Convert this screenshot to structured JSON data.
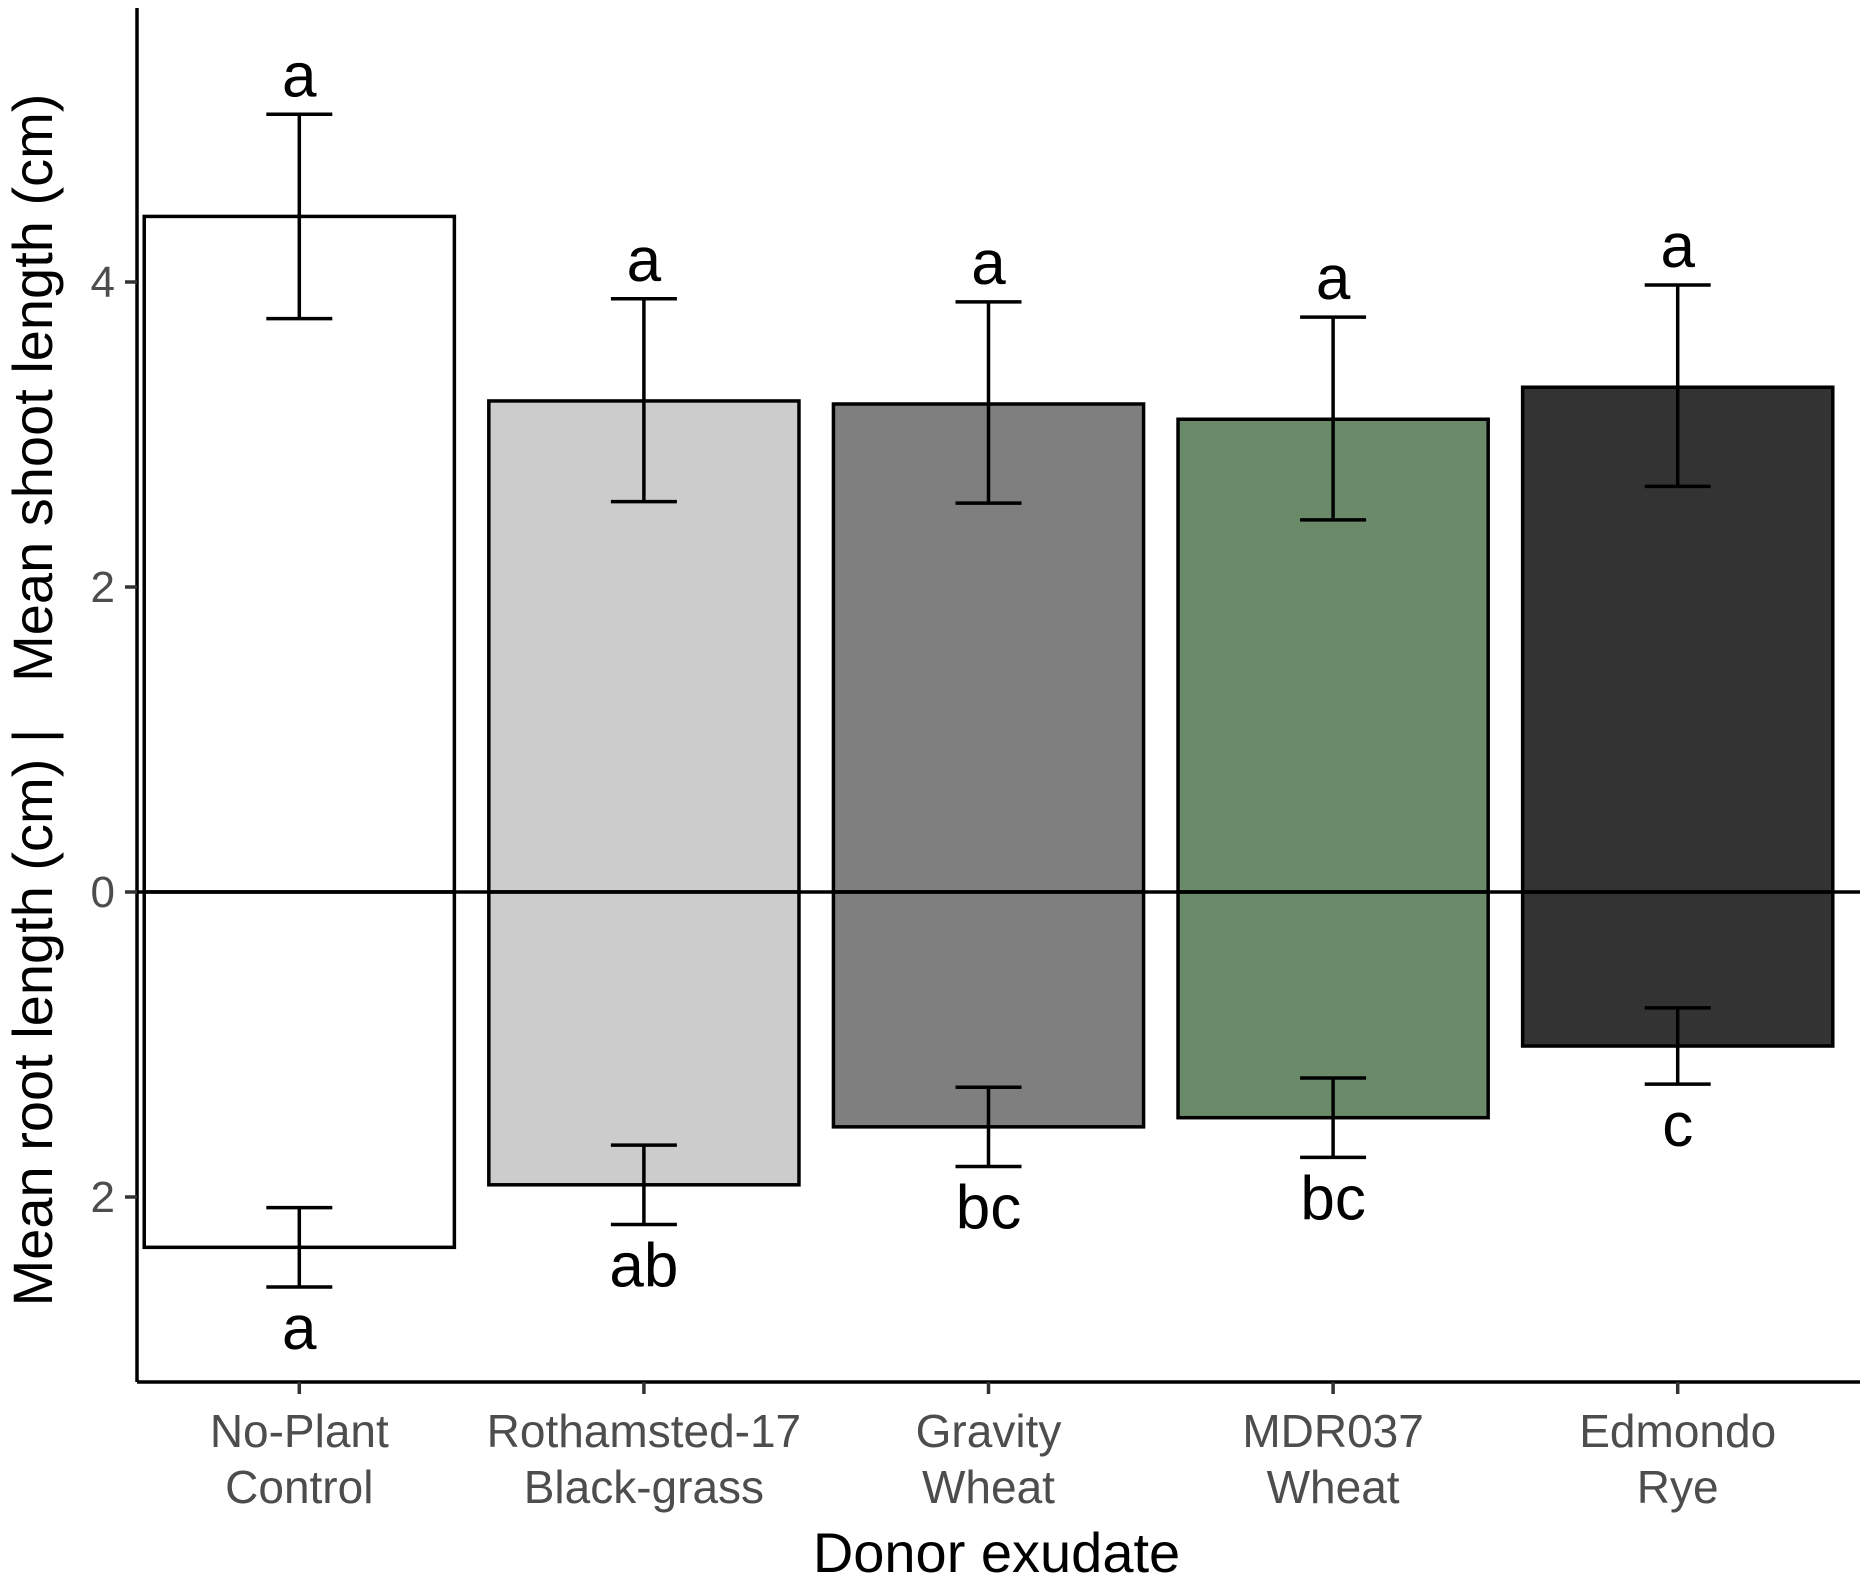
{
  "chart_data": {
    "type": "bar",
    "title": "",
    "xlabel": "Donor exudate",
    "ylabel": "Mean root length (cm) |   Mean shoot length (cm)",
    "ylim": [
      -3.2,
      5.8
    ],
    "yticks": [
      {
        "value": 4,
        "label": "4"
      },
      {
        "value": 2,
        "label": "2"
      },
      {
        "value": 0,
        "label": "0"
      },
      {
        "value": -2,
        "label": "2"
      }
    ],
    "categories": [
      {
        "line1": "No-Plant",
        "line2": "Control"
      },
      {
        "line1": "Rothamsted-17",
        "line2": "Black-grass"
      },
      {
        "line1": "Gravity",
        "line2": "Wheat"
      },
      {
        "line1": "MDR037",
        "line2": "Wheat"
      },
      {
        "line1": "Edmondo",
        "line2": "Rye"
      }
    ],
    "colors": [
      "#ffffff",
      "#cccccc",
      "#7f7f7f",
      "#6a8a6a",
      "#333333"
    ],
    "series": [
      {
        "name": "Mean shoot length (cm)",
        "values": [
          4.43,
          3.22,
          3.2,
          3.1,
          3.31
        ],
        "err_low": [
          3.76,
          2.56,
          2.55,
          2.44,
          2.66
        ],
        "err_high": [
          5.1,
          3.89,
          3.87,
          3.77,
          3.98
        ],
        "letters": [
          "a",
          "a",
          "a",
          "a",
          "a"
        ]
      },
      {
        "name": "Mean root length (cm)",
        "values": [
          -2.33,
          -1.92,
          -1.54,
          -1.48,
          -1.01
        ],
        "err_low": [
          -2.07,
          -1.66,
          -1.28,
          -1.22,
          -0.76
        ],
        "err_high": [
          -2.59,
          -2.18,
          -1.8,
          -1.74,
          -1.26
        ],
        "letters": [
          "a",
          "ab",
          "bc",
          "bc",
          "c"
        ]
      }
    ]
  }
}
